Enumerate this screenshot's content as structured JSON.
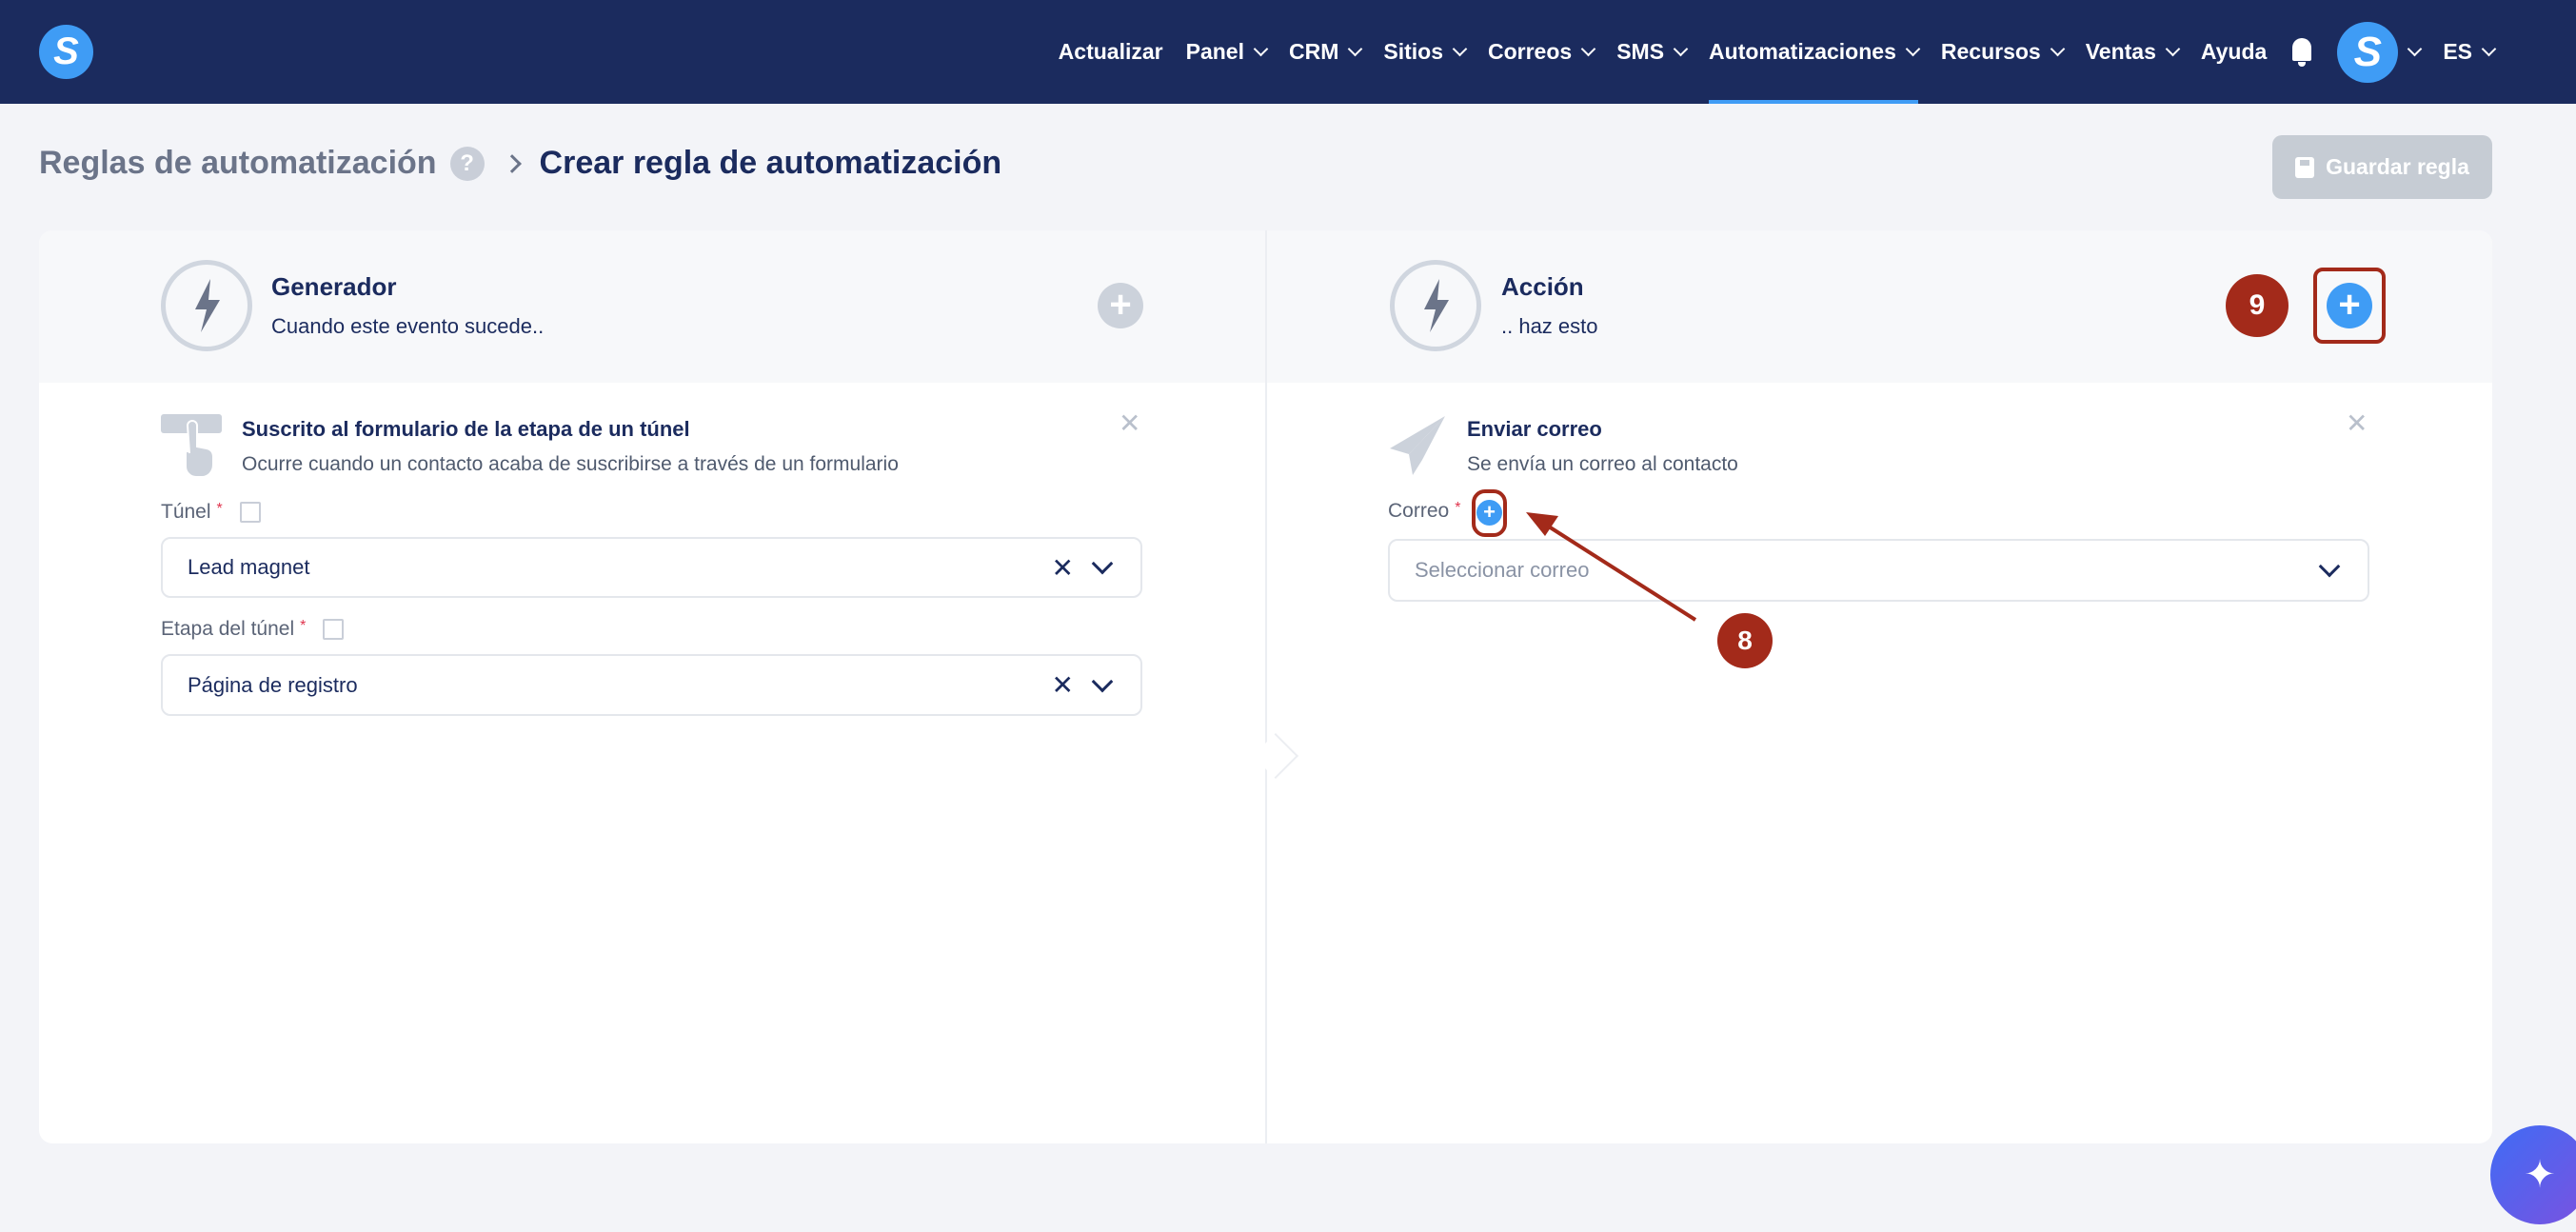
{
  "nav": {
    "logo": "S",
    "items": [
      {
        "label": "Actualizar",
        "chevron": false
      },
      {
        "label": "Panel",
        "chevron": true
      },
      {
        "label": "CRM",
        "chevron": true
      },
      {
        "label": "Sitios",
        "chevron": true
      },
      {
        "label": "Correos",
        "chevron": true
      },
      {
        "label": "SMS",
        "chevron": true
      },
      {
        "label": "Automatizaciones",
        "chevron": true,
        "active": true
      },
      {
        "label": "Recursos",
        "chevron": true
      },
      {
        "label": "Ventas",
        "chevron": true
      },
      {
        "label": "Ayuda",
        "chevron": false
      }
    ],
    "avatar": "S",
    "language": "ES"
  },
  "breadcrumb": {
    "parent": "Reglas de automatización",
    "help": "?",
    "current": "Crear regla de automatización"
  },
  "save_button": "Guardar regla",
  "trigger": {
    "title": "Generador",
    "subtitle": "Cuando este evento sucede..",
    "item": {
      "title": "Suscrito al formulario de la etapa de un túnel",
      "description": "Ocurre cuando un contacto acaba de suscribirse a través de un formulario"
    },
    "fields": [
      {
        "label": "Túnel",
        "required": "*",
        "value": "Lead magnet"
      },
      {
        "label": "Etapa del túnel",
        "required": "*",
        "value": "Página de registro"
      }
    ]
  },
  "action": {
    "title": "Acción",
    "subtitle": ".. haz esto",
    "item": {
      "title": "Enviar correo",
      "description": "Se envía un correo al contacto"
    },
    "field": {
      "label": "Correo",
      "required": "*",
      "placeholder": "Seleccionar correo"
    }
  },
  "annotations": {
    "badge_8": "8",
    "badge_9": "9",
    "color": "#a32a1a"
  },
  "colors": {
    "nav": "#1b2b5e",
    "accent": "#3f9cf5"
  }
}
